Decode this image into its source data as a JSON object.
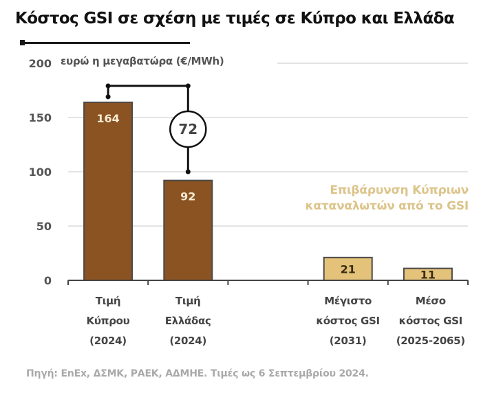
{
  "title": "Κόστος GSI σε σχέση με τιμές σε Κύπρο και Ελλάδα",
  "unit_label": "ευρώ η μεγαβατώρα (€/MWh)",
  "annotation": {
    "line1": "Επιβάρυνση Κύπριων",
    "line2": "καταναλωτών από το GSI",
    "color": "#dcc48a"
  },
  "source": "Πηγή: EnEx, ΔΣΜΚ, ΡΑΕΚ, ΑΔΜΗΕ. Τιμές ως 6 Σεπτεμβρίου 2024.",
  "colors": {
    "price_bar": "#8b5322",
    "gsi_bar": "#e4c27a",
    "bar_outline": "#4a4a4a",
    "gridline": "#e3e3e3",
    "axis": "#444444",
    "bracket": "#111111"
  },
  "chart_data": {
    "type": "bar",
    "title": "Κόστος GSI σε σχέση με τιμές σε Κύπρο και Ελλάδα",
    "xlabel": "",
    "ylabel": "ευρώ η μεγαβατώρα (€/MWh)",
    "ylim": [
      0,
      200
    ],
    "yticks": [
      0,
      50,
      100,
      150,
      200
    ],
    "ytick_labels": [
      "0",
      "50",
      "100",
      "150",
      "200"
    ],
    "grid": true,
    "categories": [
      {
        "lines": [
          "Τιμή",
          "Κύπρου",
          "(2024)"
        ]
      },
      {
        "lines": [
          "Τιμή",
          "Ελλάδας",
          "(2024)"
        ]
      },
      {
        "lines": [
          "",
          "",
          ""
        ]
      },
      {
        "lines": [
          "Μέγιστο",
          "κόστος GSI",
          "(2031)"
        ]
      },
      {
        "lines": [
          "Μέσο",
          "κόστος GSI",
          "(2025-2065)"
        ]
      }
    ],
    "values": [
      164,
      92,
      null,
      21,
      11
    ],
    "value_labels": [
      "164",
      "92",
      "",
      "21",
      "11"
    ],
    "bar_groups": [
      "price",
      "price",
      "empty",
      "gsi",
      "gsi"
    ],
    "difference_annotation": {
      "from_category": 0,
      "to_category": 1,
      "value": 72,
      "label": "72"
    }
  }
}
